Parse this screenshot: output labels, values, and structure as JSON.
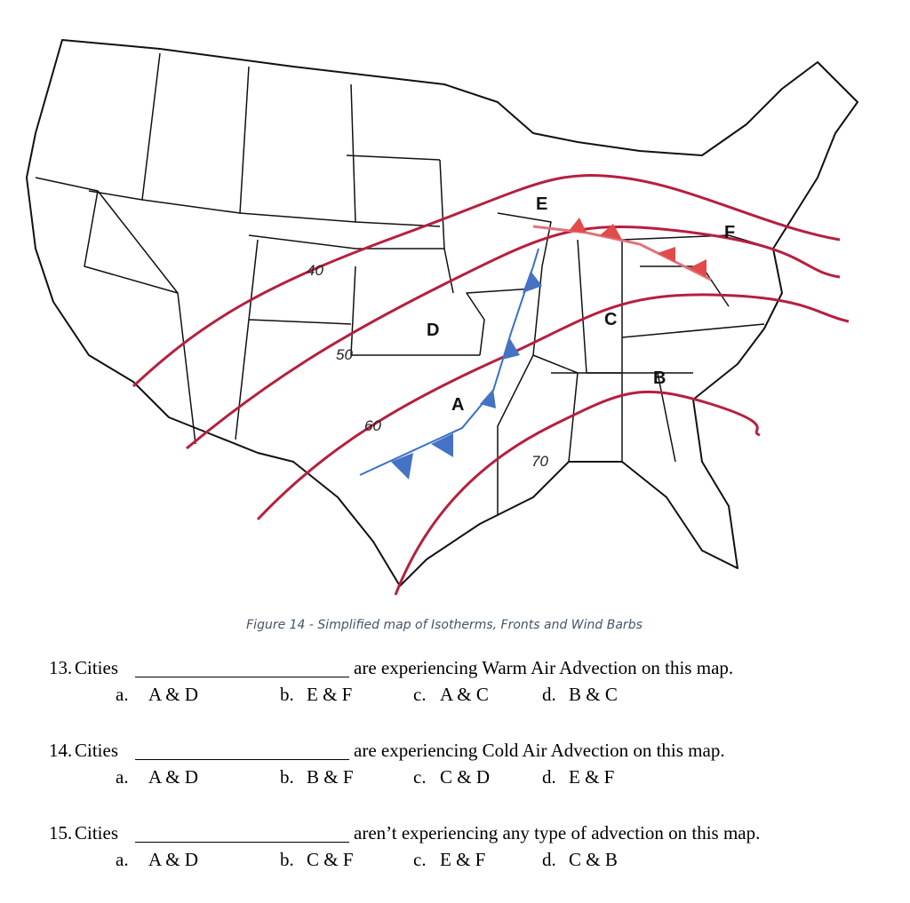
{
  "figure": {
    "caption": "Figure 14 - Simplified map of Isotherms, Fronts and Wind Barbs",
    "isotherm_labels": [
      "40",
      "50",
      "60",
      "70"
    ],
    "cities": [
      "E",
      "A",
      "D",
      "C",
      "B",
      "F"
    ]
  },
  "questions": [
    {
      "number": "13.",
      "prefix": "Cities",
      "stem": "are experiencing Warm Air Advection on this map.",
      "options": [
        {
          "letter": "a.",
          "text": "A & D"
        },
        {
          "letter": "b.",
          "text": "E & F"
        },
        {
          "letter": "c.",
          "text": "A & C"
        },
        {
          "letter": "d.",
          "text": "B & C"
        }
      ]
    },
    {
      "number": "14.",
      "prefix": "Cities",
      "stem": "are experiencing Cold Air Advection on this map.",
      "options": [
        {
          "letter": "a.",
          "text": "A & D"
        },
        {
          "letter": "b.",
          "text": "B & F"
        },
        {
          "letter": "c.",
          "text": "C & D"
        },
        {
          "letter": "d.",
          "text": "E & F"
        }
      ]
    },
    {
      "number": "15.",
      "prefix": "Cities",
      "stem": "aren’t experiencing any type of advection on this map.",
      "options": [
        {
          "letter": "a.",
          "text": "A & D"
        },
        {
          "letter": "b.",
          "text": "C & F"
        },
        {
          "letter": "c.",
          "text": "E & F"
        },
        {
          "letter": "d.",
          "text": "C & B"
        }
      ]
    }
  ]
}
